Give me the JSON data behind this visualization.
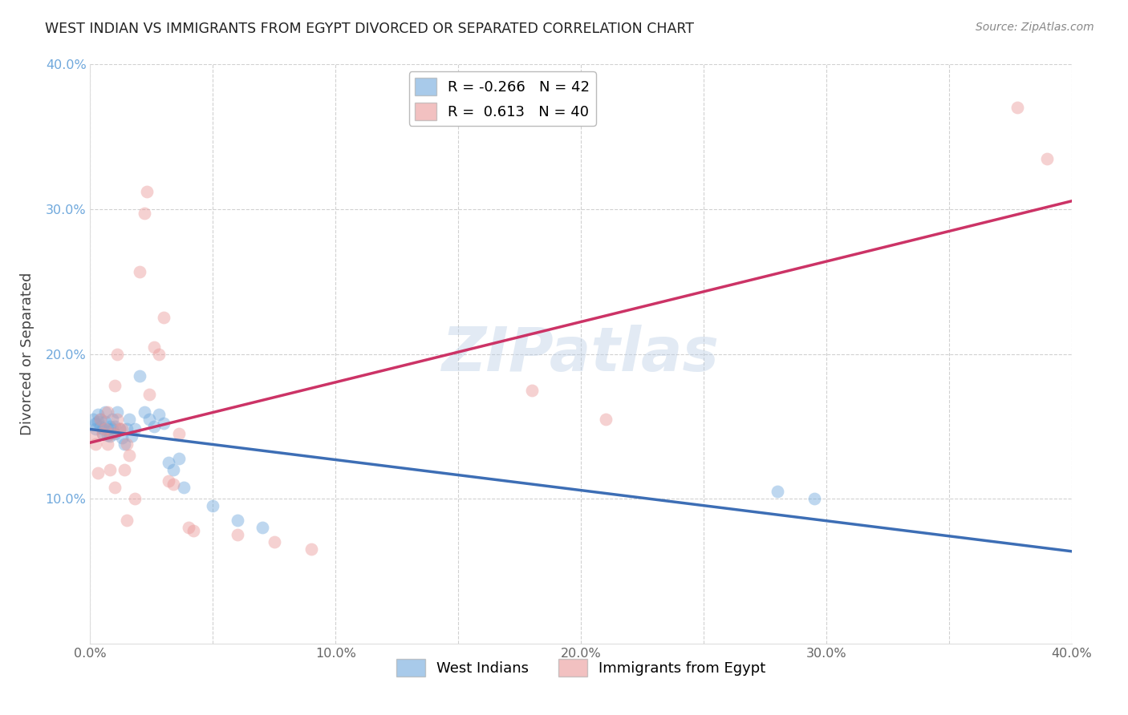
{
  "title": "WEST INDIAN VS IMMIGRANTS FROM EGYPT DIVORCED OR SEPARATED CORRELATION CHART",
  "source": "Source: ZipAtlas.com",
  "ylabel": "Divorced or Separated",
  "xlim": [
    0.0,
    0.4
  ],
  "ylim": [
    0.0,
    0.4
  ],
  "xtick_labels": [
    "0.0%",
    "",
    "10.0%",
    "",
    "20.0%",
    "",
    "30.0%",
    "",
    "40.0%"
  ],
  "xtick_vals": [
    0.0,
    0.05,
    0.1,
    0.15,
    0.2,
    0.25,
    0.3,
    0.35,
    0.4
  ],
  "ytick_labels": [
    "10.0%",
    "20.0%",
    "30.0%",
    "40.0%"
  ],
  "ytick_vals": [
    0.1,
    0.2,
    0.3,
    0.4
  ],
  "legend_blue_r": "-0.266",
  "legend_blue_n": "42",
  "legend_pink_r": "0.613",
  "legend_pink_n": "40",
  "blue_color": "#6fa8dc",
  "pink_color": "#ea9999",
  "line_blue": "#3d6eb5",
  "line_pink": "#cc3366",
  "watermark": "ZIPatlas",
  "blue_scatter": [
    [
      0.001,
      0.155
    ],
    [
      0.002,
      0.152
    ],
    [
      0.002,
      0.148
    ],
    [
      0.003,
      0.153
    ],
    [
      0.003,
      0.158
    ],
    [
      0.004,
      0.15
    ],
    [
      0.004,
      0.155
    ],
    [
      0.005,
      0.148
    ],
    [
      0.005,
      0.145
    ],
    [
      0.006,
      0.16
    ],
    [
      0.006,
      0.153
    ],
    [
      0.007,
      0.148
    ],
    [
      0.007,
      0.144
    ],
    [
      0.008,
      0.15
    ],
    [
      0.008,
      0.143
    ],
    [
      0.009,
      0.148
    ],
    [
      0.009,
      0.155
    ],
    [
      0.01,
      0.15
    ],
    [
      0.01,
      0.145
    ],
    [
      0.011,
      0.16
    ],
    [
      0.012,
      0.148
    ],
    [
      0.013,
      0.142
    ],
    [
      0.014,
      0.138
    ],
    [
      0.015,
      0.148
    ],
    [
      0.016,
      0.155
    ],
    [
      0.017,
      0.143
    ],
    [
      0.018,
      0.148
    ],
    [
      0.02,
      0.185
    ],
    [
      0.022,
      0.16
    ],
    [
      0.024,
      0.155
    ],
    [
      0.026,
      0.15
    ],
    [
      0.028,
      0.158
    ],
    [
      0.03,
      0.152
    ],
    [
      0.032,
      0.125
    ],
    [
      0.034,
      0.12
    ],
    [
      0.036,
      0.128
    ],
    [
      0.038,
      0.108
    ],
    [
      0.05,
      0.095
    ],
    [
      0.06,
      0.085
    ],
    [
      0.07,
      0.08
    ],
    [
      0.28,
      0.105
    ],
    [
      0.295,
      0.1
    ]
  ],
  "pink_scatter": [
    [
      0.001,
      0.143
    ],
    [
      0.002,
      0.138
    ],
    [
      0.003,
      0.118
    ],
    [
      0.004,
      0.155
    ],
    [
      0.005,
      0.145
    ],
    [
      0.006,
      0.148
    ],
    [
      0.007,
      0.138
    ],
    [
      0.007,
      0.16
    ],
    [
      0.008,
      0.12
    ],
    [
      0.009,
      0.145
    ],
    [
      0.01,
      0.108
    ],
    [
      0.01,
      0.178
    ],
    [
      0.011,
      0.155
    ],
    [
      0.011,
      0.2
    ],
    [
      0.012,
      0.148
    ],
    [
      0.013,
      0.148
    ],
    [
      0.014,
      0.12
    ],
    [
      0.015,
      0.138
    ],
    [
      0.015,
      0.085
    ],
    [
      0.016,
      0.13
    ],
    [
      0.018,
      0.1
    ],
    [
      0.02,
      0.257
    ],
    [
      0.022,
      0.297
    ],
    [
      0.023,
      0.312
    ],
    [
      0.024,
      0.172
    ],
    [
      0.026,
      0.205
    ],
    [
      0.028,
      0.2
    ],
    [
      0.03,
      0.225
    ],
    [
      0.032,
      0.112
    ],
    [
      0.034,
      0.11
    ],
    [
      0.036,
      0.145
    ],
    [
      0.04,
      0.08
    ],
    [
      0.042,
      0.078
    ],
    [
      0.06,
      0.075
    ],
    [
      0.075,
      0.07
    ],
    [
      0.09,
      0.065
    ],
    [
      0.18,
      0.175
    ],
    [
      0.21,
      0.155
    ],
    [
      0.378,
      0.37
    ],
    [
      0.39,
      0.335
    ]
  ]
}
